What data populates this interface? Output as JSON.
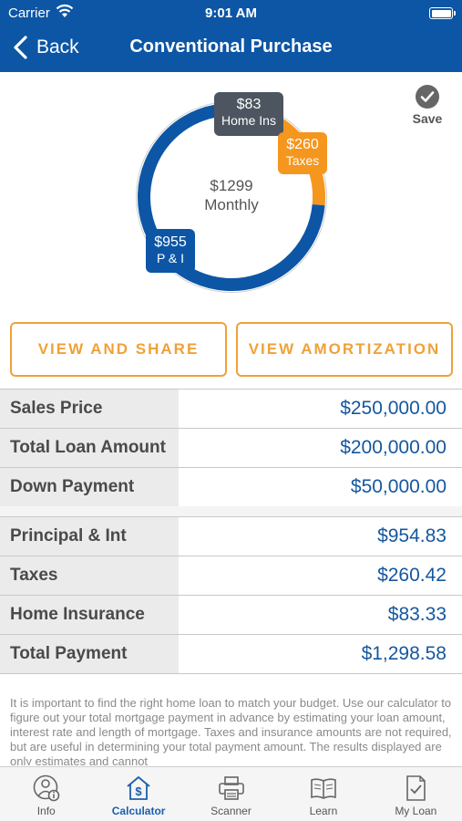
{
  "status": {
    "carrier": "Carrier",
    "time": "9:01 AM"
  },
  "nav": {
    "back_label": "Back",
    "title": "Conventional Purchase"
  },
  "chart_data": {
    "type": "pie",
    "center_value": "$1299",
    "center_label": "Monthly",
    "slices": [
      {
        "label": "Home Ins",
        "display": "$83",
        "value": 83,
        "color": "#4c5560"
      },
      {
        "label": "Taxes",
        "display": "$260",
        "value": 260,
        "color": "#f5961f"
      },
      {
        "label": "P & I",
        "display": "$955",
        "value": 955,
        "color": "#0d56a6"
      }
    ]
  },
  "save_label": "Save",
  "buttons": {
    "share": "VIEW AND SHARE",
    "amortization": "VIEW AMORTIZATION"
  },
  "loan_table": [
    {
      "label": "Sales Price",
      "value": "$250,000.00"
    },
    {
      "label": "Total Loan Amount",
      "value": "$200,000.00"
    },
    {
      "label": "Down Payment",
      "value": "$50,000.00"
    }
  ],
  "payment_table": [
    {
      "label": "Principal & Int",
      "value": "$954.83"
    },
    {
      "label": "Taxes",
      "value": "$260.42"
    },
    {
      "label": "Home Insurance",
      "value": "$83.33"
    },
    {
      "label": "Total Payment",
      "value": "$1,298.58"
    }
  ],
  "disclaimer": "It is important to find the right home loan to match your budget. Use our calculator to figure out your total mortgage payment in advance by estimating your loan amount, interest rate and length of mortgage. Taxes and insurance amounts are not required, but are useful in determining your total payment amount.  The results displayed are only estimates and cannot",
  "tabs": [
    {
      "label": "Info",
      "icon": "info-person-icon"
    },
    {
      "label": "Calculator",
      "icon": "calculator-house-icon",
      "active": true
    },
    {
      "label": "Scanner",
      "icon": "printer-scanner-icon"
    },
    {
      "label": "Learn",
      "icon": "open-book-icon"
    },
    {
      "label": "My Loan",
      "icon": "document-check-icon"
    }
  ]
}
